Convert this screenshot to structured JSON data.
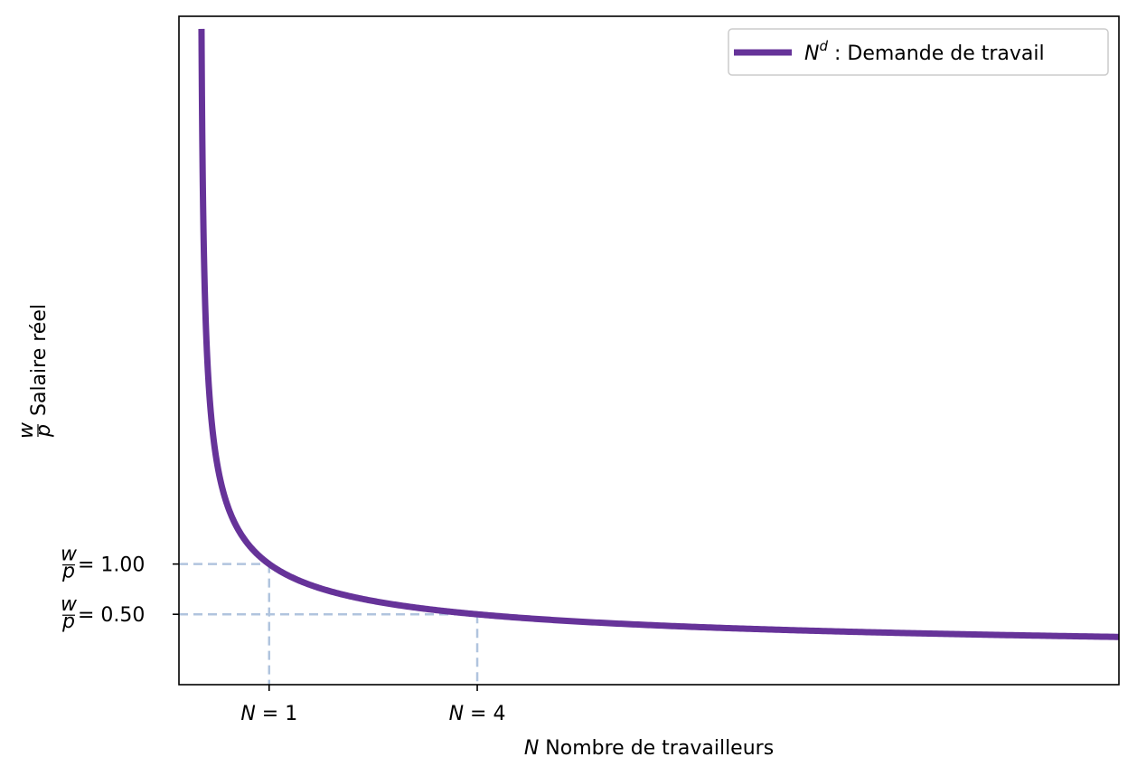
{
  "chart_data": {
    "type": "line",
    "xlabel": {
      "var": "N",
      "text": " Nombre de travailleurs"
    },
    "ylabel": {
      "frac_num": "w",
      "frac_den": "p",
      "text": "Salaire réel"
    },
    "xlim": [
      -0.3,
      13.25
    ],
    "ylim": [
      -0.2,
      6.45
    ],
    "x_ticks": [
      {
        "value": 1,
        "var": "N",
        "text": " = 1"
      },
      {
        "value": 4,
        "var": "N",
        "text": " = 4"
      }
    ],
    "y_ticks": [
      {
        "value": 1.0,
        "frac_num": "w",
        "frac_den": "p",
        "text": " = 1.00"
      },
      {
        "value": 0.5,
        "frac_num": "w",
        "frac_den": "p",
        "text": " = 0.50"
      }
    ],
    "series": [
      {
        "name_var": "N",
        "name_sup": "d",
        "name_text": " : Demande de travail",
        "color": "#663399",
        "formula": "1/sqrt(N)",
        "x_start": 0.025,
        "x_end": 13.3
      }
    ],
    "guides": {
      "color": "#b0c4de",
      "points": [
        {
          "x": 1,
          "y": 1.0
        },
        {
          "x": 4,
          "y": 0.5
        }
      ]
    },
    "legend_position": "top-right",
    "grid": false
  }
}
